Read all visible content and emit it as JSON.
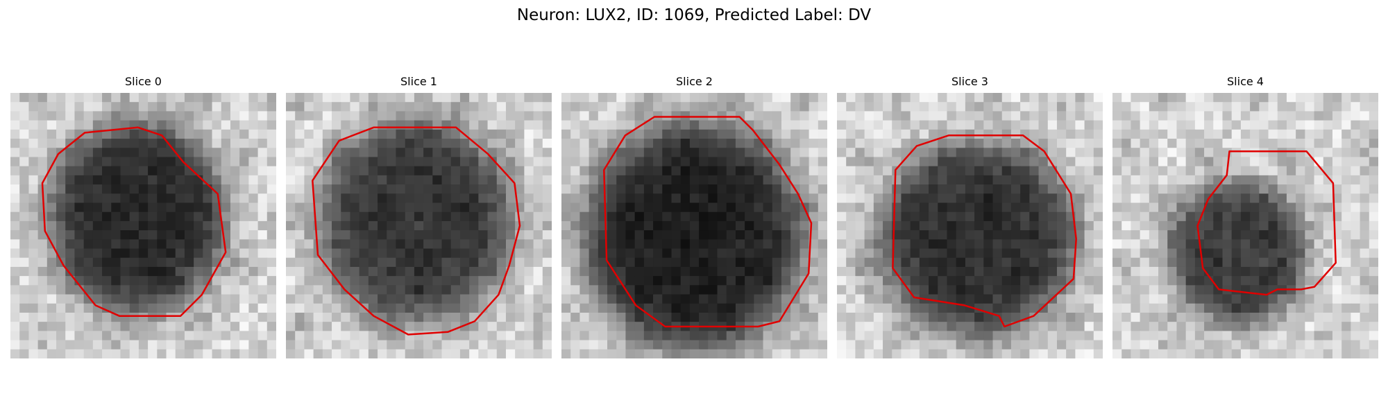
{
  "figure": {
    "title": "Neuron: LUX2, ID: 1069, Predicted Label: DV",
    "contour_color": "#e00000"
  },
  "panels": [
    {
      "title": "Slice 0",
      "blob_darkness": 0.8
    },
    {
      "title": "Slice 1",
      "blob_darkness": 0.75
    },
    {
      "title": "Slice 2",
      "blob_darkness": 0.85
    },
    {
      "title": "Slice 3",
      "blob_darkness": 0.78
    },
    {
      "title": "Slice 4",
      "blob_darkness": 0.72
    }
  ]
}
